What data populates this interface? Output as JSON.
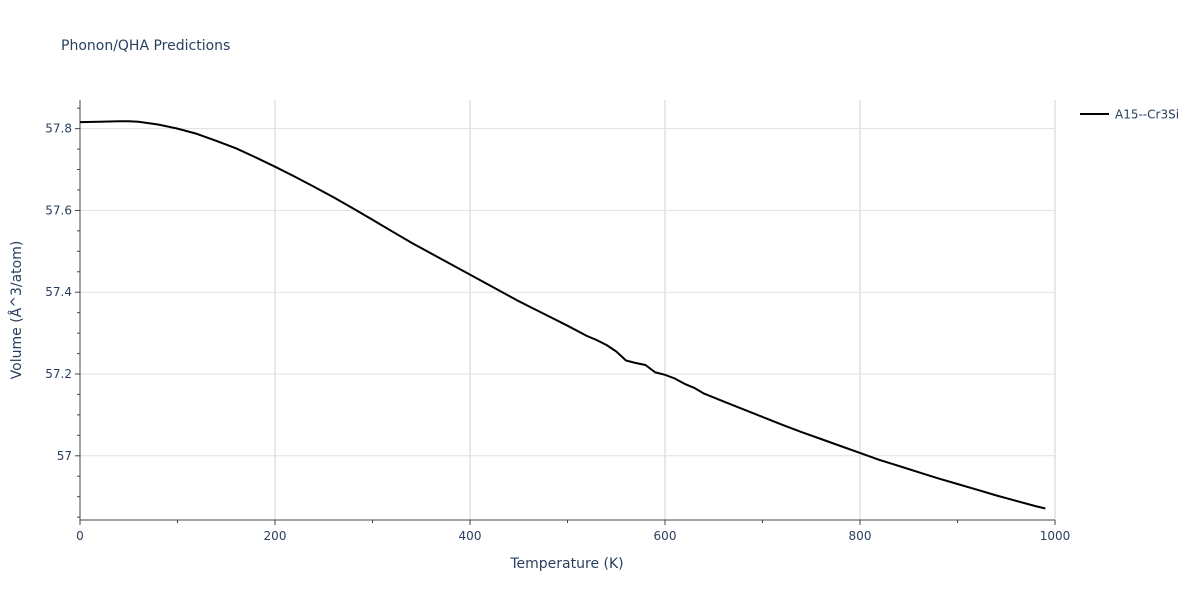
{
  "chart_data": {
    "type": "line",
    "title": "Phonon/QHA Predictions",
    "xlabel": "Temperature (K)",
    "ylabel": "Volume (Å^3/atom)",
    "xlim": [
      0,
      1000
    ],
    "ylim": [
      56.843,
      57.87
    ],
    "x_ticks": [
      0,
      200,
      400,
      600,
      800,
      1000
    ],
    "x_tick_labels": [
      "0",
      "200",
      "400",
      "600",
      "800",
      "1000"
    ],
    "y_ticks": [
      57.0,
      57.2,
      57.4,
      57.6,
      57.8
    ],
    "y_tick_labels": [
      "57",
      "57.2",
      "57.4",
      "57.6",
      "57.8"
    ],
    "grid": true,
    "legend_position": "top-right",
    "series": [
      {
        "name": "A15--Cr3Si",
        "color": "#000000",
        "x": [
          0,
          20,
          40,
          50,
          60,
          80,
          100,
          120,
          140,
          160,
          180,
          200,
          220,
          240,
          260,
          280,
          300,
          320,
          340,
          360,
          380,
          400,
          420,
          440,
          450,
          460,
          480,
          500,
          520,
          530,
          540,
          550,
          560,
          570,
          580,
          590,
          600,
          610,
          620,
          630,
          640,
          660,
          680,
          700,
          720,
          740,
          760,
          780,
          800,
          820,
          840,
          860,
          880,
          900,
          920,
          940,
          960,
          980,
          990
        ],
        "y": [
          57.816,
          57.817,
          57.818,
          57.818,
          57.817,
          57.81,
          57.8,
          57.787,
          57.77,
          57.752,
          57.73,
          57.707,
          57.683,
          57.658,
          57.632,
          57.605,
          57.577,
          57.549,
          57.521,
          57.495,
          57.469,
          57.443,
          57.417,
          57.391,
          57.378,
          57.366,
          57.342,
          57.318,
          57.293,
          57.283,
          57.271,
          57.255,
          57.233,
          57.227,
          57.222,
          57.204,
          57.198,
          57.189,
          57.176,
          57.166,
          57.152,
          57.133,
          57.114,
          57.095,
          57.076,
          57.058,
          57.041,
          57.024,
          57.007,
          56.99,
          56.975,
          56.96,
          56.945,
          56.931,
          56.917,
          56.903,
          56.89,
          56.877,
          56.871
        ]
      }
    ]
  }
}
